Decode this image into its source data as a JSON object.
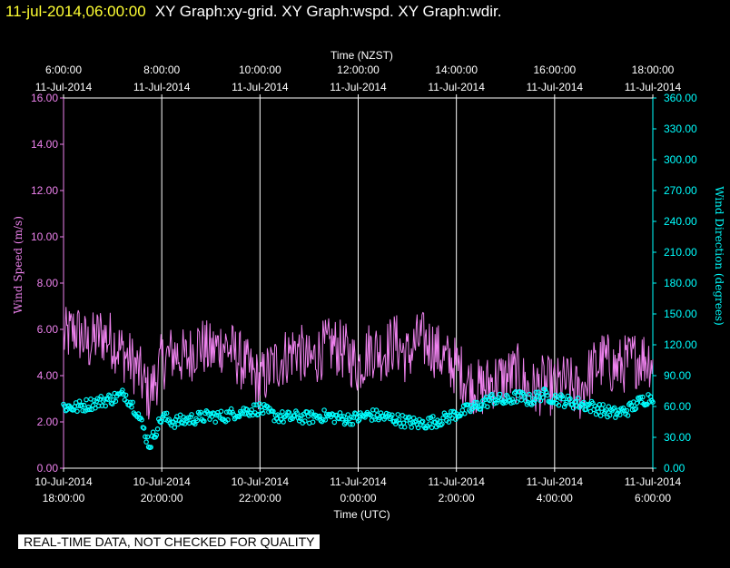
{
  "header": {
    "timestamp": "11-jul-2014,06:00:00",
    "graphs": "XY Graph:xy-grid.  XY Graph:wspd.  XY Graph:wdir."
  },
  "banner": "REAL-TIME DATA, NOT CHECKED FOR QUALITY",
  "colors": {
    "wind_speed": "#ee82ee",
    "wind_direction": "#00ffff",
    "text": "#ffffff",
    "grid": "#ffffff"
  },
  "chart_data": {
    "type": "line",
    "x_top_label": "Time (NZST)",
    "x_bottom_label": "Time (UTC)",
    "x_range_hours_utc": [
      18,
      30
    ],
    "top_ticks": [
      {
        "hour": 18,
        "time": "6:00:00",
        "date": "11-Jul-2014"
      },
      {
        "hour": 20,
        "time": "8:00:00",
        "date": "11-Jul-2014"
      },
      {
        "hour": 22,
        "time": "10:00:00",
        "date": "11-Jul-2014"
      },
      {
        "hour": 24,
        "time": "12:00:00",
        "date": "11-Jul-2014"
      },
      {
        "hour": 26,
        "time": "14:00:00",
        "date": "11-Jul-2014"
      },
      {
        "hour": 28,
        "time": "16:00:00",
        "date": "11-Jul-2014"
      },
      {
        "hour": 30,
        "time": "18:00:00",
        "date": "11-Jul-2014"
      }
    ],
    "bottom_ticks": [
      {
        "hour": 18,
        "date": "10-Jul-2014",
        "time": "18:00:00"
      },
      {
        "hour": 20,
        "date": "10-Jul-2014",
        "time": "20:00:00"
      },
      {
        "hour": 22,
        "date": "10-Jul-2014",
        "time": "22:00:00"
      },
      {
        "hour": 24,
        "date": "11-Jul-2014",
        "time": "0:00:00"
      },
      {
        "hour": 26,
        "date": "11-Jul-2014",
        "time": "2:00:00"
      },
      {
        "hour": 28,
        "date": "11-Jul-2014",
        "time": "4:00:00"
      },
      {
        "hour": 30,
        "date": "11-Jul-2014",
        "time": "6:00:00"
      }
    ],
    "y_left": {
      "label": "Wind Speed (m/s)",
      "range": [
        0,
        16
      ],
      "ticks": [
        "0.00",
        "2.00",
        "4.00",
        "6.00",
        "8.00",
        "10.00",
        "12.00",
        "14.00",
        "16.00"
      ]
    },
    "y_right": {
      "label": "Wind Direction (degrees)",
      "range": [
        0,
        360
      ],
      "ticks": [
        "0.00",
        "30.00",
        "60.00",
        "90.00",
        "120.00",
        "150.00",
        "180.00",
        "210.00",
        "240.00",
        "270.00",
        "300.00",
        "330.00",
        "360.00"
      ]
    },
    "series": [
      {
        "name": "Wind Speed",
        "style": "line",
        "axis": "left",
        "x": [
          18,
          18.25,
          18.5,
          18.75,
          19,
          19.25,
          19.5,
          19.75,
          20,
          20.25,
          20.5,
          20.75,
          21,
          21.25,
          21.5,
          21.75,
          22,
          22.25,
          22.5,
          22.75,
          23,
          23.25,
          23.5,
          23.75,
          24,
          24.25,
          24.5,
          24.75,
          25,
          25.25,
          25.5,
          25.75,
          26,
          26.25,
          26.5,
          26.75,
          27,
          27.25,
          27.5,
          27.75,
          28,
          28.25,
          28.5,
          28.75,
          29,
          29.25,
          29.5,
          29.75,
          30
        ],
        "y": [
          5.6,
          6.0,
          5.3,
          5.8,
          5.5,
          4.9,
          4.3,
          3.1,
          4.6,
          5.0,
          4.7,
          5.4,
          5.0,
          5.4,
          4.9,
          4.3,
          3.7,
          4.4,
          4.8,
          5.2,
          4.5,
          5.1,
          5.3,
          5.0,
          4.4,
          5.2,
          5.0,
          5.5,
          4.8,
          5.6,
          5.3,
          4.7,
          4.4,
          3.7,
          3.4,
          3.8,
          3.9,
          4.1,
          3.3,
          3.6,
          3.5,
          3.7,
          3.2,
          4.2,
          4.7,
          4.3,
          4.6,
          4.8,
          4.7
        ]
      },
      {
        "name": "Wind Direction",
        "style": "scatter",
        "axis": "right",
        "x": [
          18,
          18.25,
          18.5,
          18.75,
          19,
          19.25,
          19.5,
          19.75,
          20,
          20.25,
          20.5,
          20.75,
          21,
          21.25,
          21.5,
          21.75,
          22,
          22.25,
          22.5,
          22.75,
          23,
          23.25,
          23.5,
          23.75,
          24,
          24.25,
          24.5,
          24.75,
          25,
          25.25,
          25.5,
          25.75,
          26,
          26.25,
          26.5,
          26.75,
          27,
          27.25,
          27.5,
          27.75,
          28,
          28.25,
          28.5,
          28.75,
          29,
          29.25,
          29.5,
          29.75,
          30
        ],
        "y": [
          60,
          59,
          62,
          65,
          68,
          72,
          55,
          22,
          50,
          45,
          47,
          49,
          51,
          50,
          54,
          56,
          58,
          52,
          49,
          50,
          49,
          51,
          50,
          48,
          49,
          52,
          50,
          48,
          45,
          43,
          45,
          48,
          53,
          57,
          62,
          68,
          65,
          70,
          66,
          72,
          68,
          65,
          63,
          60,
          56,
          53,
          57,
          65,
          70
        ]
      }
    ]
  }
}
